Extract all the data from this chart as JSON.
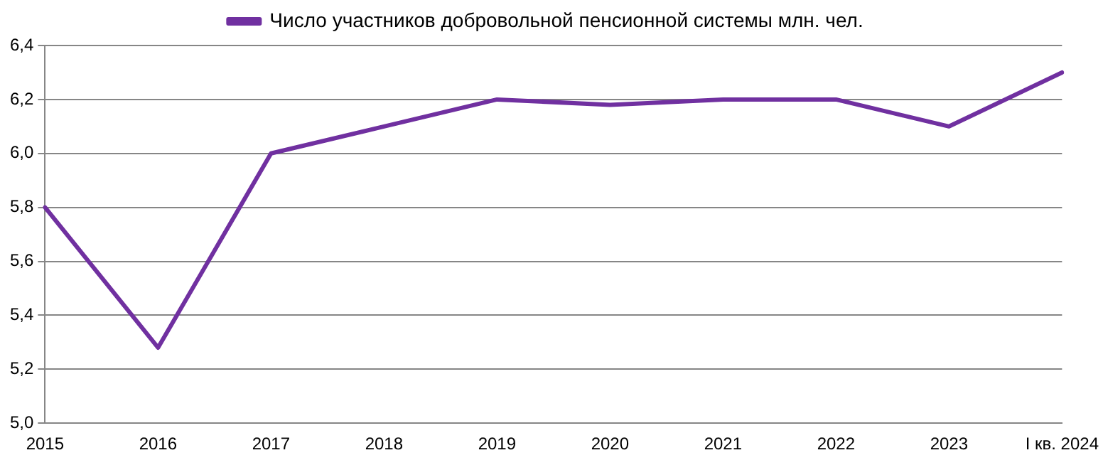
{
  "chart_data": {
    "type": "line",
    "categories": [
      "2015",
      "2016",
      "2017",
      "2018",
      "2019",
      "2020",
      "2021",
      "2022",
      "2023",
      "I кв. 2024"
    ],
    "series": [
      {
        "name": "Число участников добровольной пенсионной системы млн. чел.",
        "color": "#7030a0",
        "values": [
          5.8,
          5.28,
          6.0,
          6.1,
          6.2,
          6.18,
          6.2,
          6.2,
          6.1,
          6.3
        ]
      }
    ],
    "ylim": [
      5.0,
      6.4
    ],
    "yticks": [
      {
        "value": 5.0,
        "label": "5,0"
      },
      {
        "value": 5.2,
        "label": "5,2"
      },
      {
        "value": 5.4,
        "label": "5,4"
      },
      {
        "value": 5.6,
        "label": "5,6"
      },
      {
        "value": 5.8,
        "label": "5,8"
      },
      {
        "value": 6.0,
        "label": "6,0"
      },
      {
        "value": 6.2,
        "label": "6,2"
      },
      {
        "value": 6.4,
        "label": "6,4"
      }
    ],
    "grid": "y",
    "legend": "top",
    "marker": "none",
    "line_style": "solid"
  }
}
